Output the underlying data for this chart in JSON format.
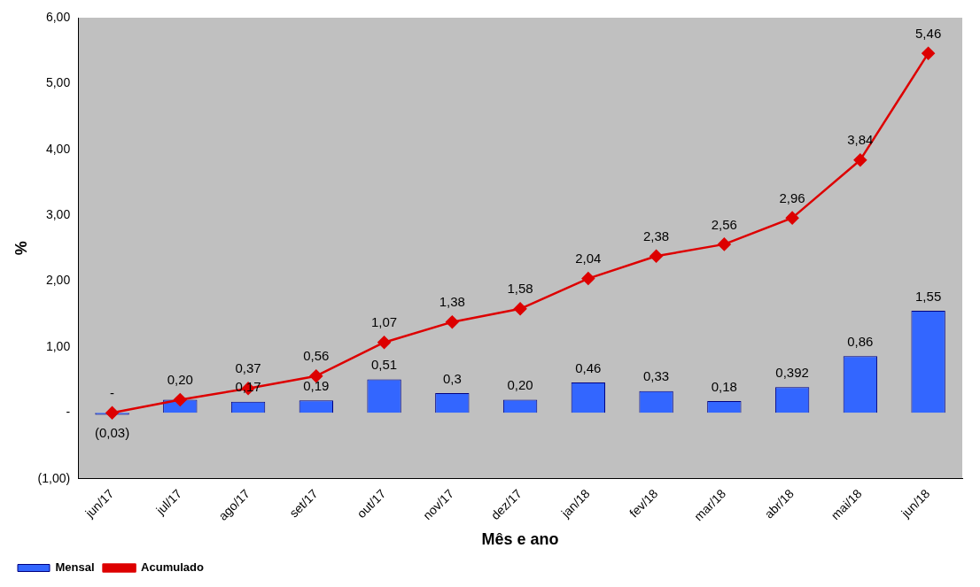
{
  "chart_data": {
    "type": "bar",
    "xlabel": "Mês e ano",
    "ylabel": "%",
    "categories": [
      "jun/17",
      "jul/17",
      "ago/17",
      "set/17",
      "out/17",
      "nov/17",
      "dez/17",
      "jan/18",
      "fev/18",
      "mar/18",
      "abr/18",
      "mai/18",
      "jun/18"
    ],
    "series": [
      {
        "name": "Mensal",
        "color": "#3366ff",
        "values": [
          -0.03,
          0.2,
          0.17,
          0.19,
          0.51,
          0.3,
          0.2,
          0.46,
          0.33,
          0.18,
          0.392,
          0.86,
          1.55
        ],
        "value_labels": [
          "(0,03)",
          null,
          "0,17",
          "0,19",
          "0,51",
          "0,3",
          "0,20",
          "0,46",
          "0,33",
          "0,18",
          "0,392",
          "0,86",
          "1,55"
        ]
      },
      {
        "name": "Acumulado",
        "type": "line",
        "color": "#dd0000",
        "values": [
          0,
          0.2,
          0.37,
          0.56,
          1.07,
          1.38,
          1.58,
          2.04,
          2.38,
          2.56,
          2.96,
          3.84,
          5.46
        ],
        "value_labels": [
          "-",
          "0,20",
          "0,37",
          "0,56",
          "1,07",
          "1,38",
          "1,58",
          "2,04",
          "2,38",
          "2,56",
          "2,96",
          "3,84",
          "5,46"
        ]
      }
    ],
    "ylim": [
      -1,
      6
    ],
    "yticks": [
      {
        "value": -1,
        "label": "(1,00)"
      },
      {
        "value": 0,
        "label": "-"
      },
      {
        "value": 1,
        "label": "1,00"
      },
      {
        "value": 2,
        "label": "2,00"
      },
      {
        "value": 3,
        "label": "3,00"
      },
      {
        "value": 4,
        "label": "4,00"
      },
      {
        "value": 5,
        "label": "5,00"
      },
      {
        "value": 6,
        "label": "6,00"
      }
    ],
    "grid": false,
    "legend": "bottom left",
    "marker": "diamond",
    "line_style": "solid"
  }
}
